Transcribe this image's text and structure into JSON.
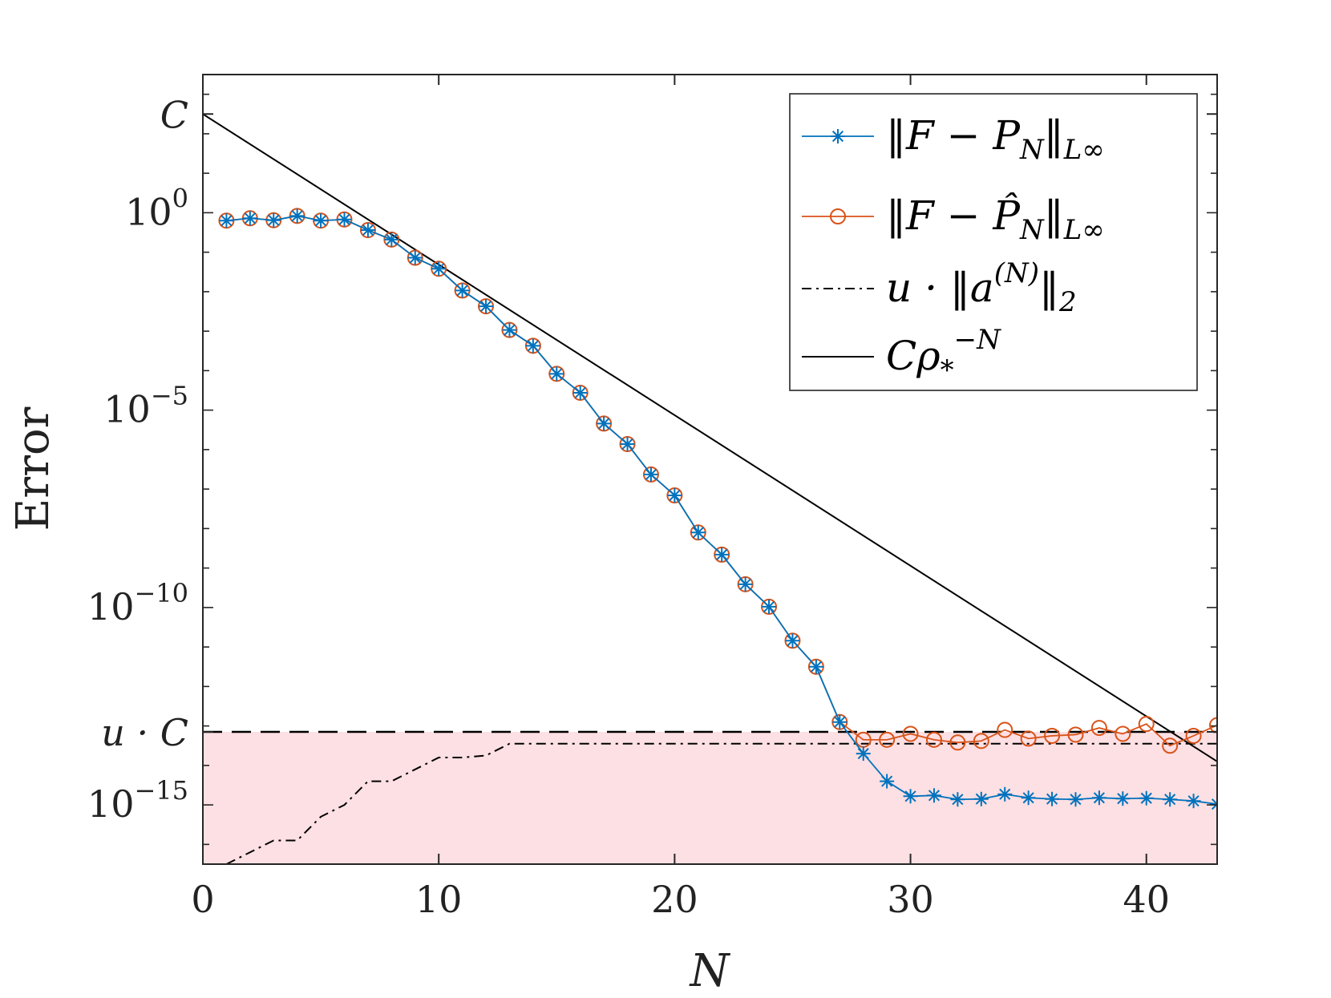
{
  "chart_data": {
    "type": "line",
    "title": "",
    "xlabel": "N",
    "ylabel": "Error",
    "xlim": [
      0,
      43
    ],
    "ylim_log10": [
      -16.5,
      3.5
    ],
    "y_scale": "log",
    "grid": false,
    "legend_position": "top-right",
    "x_ticks": [
      0,
      10,
      20,
      30,
      40
    ],
    "x_tick_labels": [
      "0",
      "10",
      "20",
      "30",
      "40"
    ],
    "y_ticks_log10": [
      0,
      -5,
      -10,
      -15
    ],
    "y_tick_labels": [
      "10^0",
      "10^-5",
      "10^-10",
      "10^-15"
    ],
    "special_ticks": [
      {
        "label": "C",
        "log10": 2.5
      },
      {
        "label": "u · C",
        "log10": -13.15
      }
    ],
    "shaded_region": {
      "from_log10": -16.5,
      "to_log10": -13.15,
      "color": "#fde0e3"
    },
    "reference_lines": [
      {
        "name": "u · C",
        "log10": -13.15,
        "style": "dashed",
        "color": "#000000"
      }
    ],
    "series": [
      {
        "name": "‖F − P_N‖_L∞",
        "legend_parts": {
          "main": "‖F − P",
          "sub": "N",
          "tail": "‖",
          "sub2": "L∞"
        },
        "color": "#0072bd",
        "marker": "asterisk",
        "x": [
          1,
          2,
          3,
          4,
          5,
          6,
          7,
          8,
          9,
          10,
          11,
          12,
          13,
          14,
          15,
          16,
          17,
          18,
          19,
          20,
          21,
          22,
          23,
          24,
          25,
          26,
          27,
          28,
          29,
          30,
          31,
          32,
          33,
          34,
          35,
          36,
          37,
          38,
          39,
          40,
          41,
          42,
          43
        ],
        "log10_y": [
          -0.2,
          -0.14,
          -0.19,
          -0.08,
          -0.2,
          -0.17,
          -0.44,
          -0.68,
          -1.14,
          -1.42,
          -1.97,
          -2.37,
          -2.97,
          -3.37,
          -4.08,
          -4.56,
          -5.34,
          -5.86,
          -6.63,
          -7.16,
          -8.1,
          -8.66,
          -9.41,
          -9.98,
          -10.84,
          -11.5,
          -12.9,
          -13.7,
          -14.4,
          -14.78,
          -14.76,
          -14.86,
          -14.85,
          -14.73,
          -14.82,
          -14.85,
          -14.86,
          -14.82,
          -14.84,
          -14.83,
          -14.86,
          -14.9,
          -14.98
        ]
      },
      {
        "name": "‖F − P̂_N‖_L∞",
        "legend_parts": {
          "main": "‖F − P̂",
          "sub": "N",
          "tail": "‖",
          "sub2": "L∞"
        },
        "color": "#d95319",
        "marker": "circle",
        "x": [
          1,
          2,
          3,
          4,
          5,
          6,
          7,
          8,
          9,
          10,
          11,
          12,
          13,
          14,
          15,
          16,
          17,
          18,
          19,
          20,
          21,
          22,
          23,
          24,
          25,
          26,
          27,
          28,
          29,
          30,
          31,
          32,
          33,
          34,
          35,
          36,
          37,
          38,
          39,
          40,
          41,
          42,
          43
        ],
        "log10_y": [
          -0.2,
          -0.14,
          -0.19,
          -0.08,
          -0.2,
          -0.17,
          -0.44,
          -0.68,
          -1.14,
          -1.42,
          -1.97,
          -2.37,
          -2.97,
          -3.37,
          -4.08,
          -4.56,
          -5.34,
          -5.86,
          -6.63,
          -7.16,
          -8.1,
          -8.66,
          -9.41,
          -9.98,
          -10.84,
          -11.5,
          -12.9,
          -13.35,
          -13.35,
          -13.2,
          -13.35,
          -13.42,
          -13.38,
          -13.1,
          -13.32,
          -13.25,
          -13.22,
          -13.05,
          -13.2,
          -12.95,
          -13.5,
          -13.25,
          -12.98
        ]
      },
      {
        "name": "u · ‖a^(N)‖_2",
        "legend_parts": {
          "main": "u · ‖a",
          "sup": "(N)",
          "tail": "‖",
          "sub2": "2"
        },
        "color": "#000000",
        "style": "dashdot",
        "x": [
          1,
          2,
          3,
          4,
          5,
          6,
          7,
          8,
          9,
          10,
          11,
          12,
          13,
          14,
          15,
          16,
          17,
          18,
          19,
          20,
          21,
          22,
          23,
          24,
          25,
          26,
          27,
          28,
          29,
          30,
          31,
          32,
          33,
          34,
          35,
          36,
          37,
          38,
          39,
          40,
          41,
          42,
          43
        ],
        "log10_y": [
          -16.5,
          -16.2,
          -15.9,
          -15.9,
          -15.3,
          -15.0,
          -14.4,
          -14.4,
          -14.1,
          -13.8,
          -13.8,
          -13.75,
          -13.45,
          -13.45,
          -13.45,
          -13.45,
          -13.45,
          -13.45,
          -13.45,
          -13.45,
          -13.45,
          -13.45,
          -13.45,
          -13.45,
          -13.45,
          -13.45,
          -13.45,
          -13.45,
          -13.45,
          -13.45,
          -13.45,
          -13.45,
          -13.45,
          -13.45,
          -13.45,
          -13.45,
          -13.45,
          -13.45,
          -13.45,
          -13.45,
          -13.45,
          -13.45,
          -13.45
        ]
      },
      {
        "name": "C ρ_*^(−N)",
        "legend_parts": {
          "main": "Cρ",
          "sub": "*",
          "sup": "−N"
        },
        "color": "#000000",
        "style": "solid",
        "x": [
          0,
          43
        ],
        "log10_y": [
          2.5,
          -13.9
        ]
      }
    ]
  }
}
